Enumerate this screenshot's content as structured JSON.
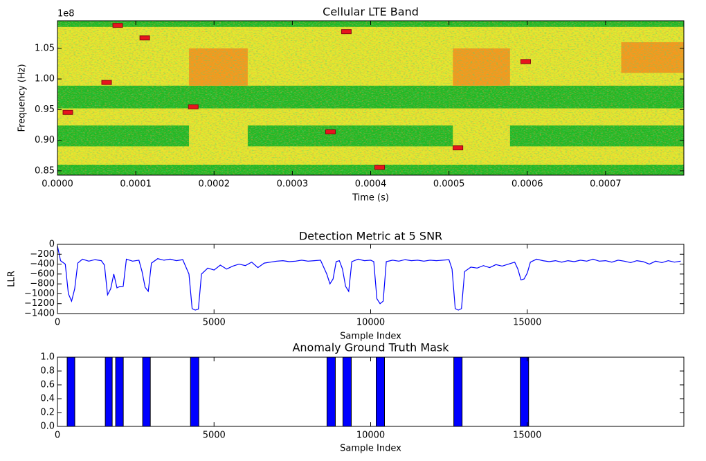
{
  "chart_data": [
    {
      "type": "spectrogram",
      "title": "Cellular LTE Band",
      "xlabel": "Time (s)",
      "ylabel": "Frequency (Hz)",
      "offset_text": "1e8",
      "xlim": [
        0,
        0.0008
      ],
      "xticks": [
        {
          "value": 0,
          "label": "0.0000"
        },
        {
          "value": 0.0001,
          "label": "0.0001"
        },
        {
          "value": 0.0002,
          "label": "0.0002"
        },
        {
          "value": 0.0003,
          "label": "0.0003"
        },
        {
          "value": 0.0004,
          "label": "0.0004"
        },
        {
          "value": 0.0005,
          "label": "0.0005"
        },
        {
          "value": 0.0006,
          "label": "0.0006"
        },
        {
          "value": 0.0007,
          "label": "0.0007"
        }
      ],
      "ylim": [
        84300000,
        109500000
      ],
      "yticks": [
        {
          "value": 85000000,
          "label": "0.85"
        },
        {
          "value": 90000000,
          "label": "0.90"
        },
        {
          "value": 95000000,
          "label": "0.95"
        },
        {
          "value": 100000000,
          "label": "1.00"
        },
        {
          "value": 105000000,
          "label": "1.05"
        }
      ],
      "level_colors": [
        "#1fb824",
        "#e6e82e",
        "#f39a1c"
      ],
      "regions": [
        {
          "x": [
            0,
            0.0008
          ],
          "y": [
            84300000,
            109500000
          ],
          "level": 1
        },
        {
          "x": [
            0,
            0.0008
          ],
          "y": [
            108500000,
            109500000
          ],
          "level": 0
        },
        {
          "x": [
            0,
            0.0008
          ],
          "y": [
            95200000,
            98900000
          ],
          "level": 0
        },
        {
          "x": [
            0,
            0.000168
          ],
          "y": [
            89000000,
            92400000
          ],
          "level": 0
        },
        {
          "x": [
            0.000243,
            0.000505
          ],
          "y": [
            89000000,
            92400000
          ],
          "level": 0
        },
        {
          "x": [
            0.000578,
            0.0008
          ],
          "y": [
            89000000,
            92400000
          ],
          "level": 0
        },
        {
          "x": [
            0,
            0.0008
          ],
          "y": [
            84300000,
            86000000
          ],
          "level": 0
        },
        {
          "x": [
            0.000168,
            0.000243
          ],
          "y": [
            98900000,
            105000000
          ],
          "level": 2
        },
        {
          "x": [
            0.000505,
            0.000578
          ],
          "y": [
            98900000,
            105000000
          ],
          "level": 2
        },
        {
          "x": [
            0.00072,
            0.0008
          ],
          "y": [
            101000000,
            106000000
          ],
          "level": 2
        }
      ],
      "marker_color": "#e8141e",
      "markers": {
        "x": [
          1.33e-05,
          6.28e-05,
          7.7e-05,
          0.0001115,
          0.0001735,
          0.0003487,
          0.000369,
          0.0004115,
          0.0005115,
          0.000598
        ],
        "y": [
          94550000,
          99430000,
          108750000,
          106700000,
          95450000,
          91360000,
          107730000,
          85570000,
          88750000,
          102840000
        ]
      }
    },
    {
      "type": "line",
      "title": "Detection Metric at 5 SNR",
      "xlabel": "Sample Index",
      "ylabel": "LLR",
      "color": "#0000ff",
      "xlim": [
        0,
        20000
      ],
      "xticks": [
        0,
        5000,
        10000,
        15000
      ],
      "ylim": [
        -1400,
        0
      ],
      "yticks": [
        0,
        {
          "value": -200,
          "label": "−200"
        },
        {
          "value": -400,
          "label": "−400"
        },
        {
          "value": -600,
          "label": "−600"
        },
        {
          "value": -800,
          "label": "−800"
        },
        {
          "value": -1000,
          "label": "−1000"
        },
        {
          "value": -1200,
          "label": "−1200"
        },
        {
          "value": -1400,
          "label": "−1400"
        }
      ],
      "x": [
        0,
        100,
        250,
        350,
        450,
        550,
        650,
        800,
        1000,
        1200,
        1400,
        1500,
        1600,
        1700,
        1800,
        1900,
        2000,
        2100,
        2200,
        2400,
        2600,
        2700,
        2800,
        2900,
        3000,
        3200,
        3400,
        3600,
        3800,
        4000,
        4200,
        4300,
        4400,
        4500,
        4600,
        4800,
        5000,
        5200,
        5400,
        5600,
        5800,
        6000,
        6200,
        6400,
        6600,
        6800,
        7000,
        7200,
        7400,
        7600,
        7800,
        8000,
        8200,
        8400,
        8600,
        8700,
        8800,
        8900,
        9000,
        9100,
        9200,
        9300,
        9400,
        9600,
        9800,
        10000,
        10100,
        10200,
        10300,
        10400,
        10500,
        10700,
        10900,
        11100,
        11300,
        11500,
        11700,
        11900,
        12100,
        12300,
        12500,
        12600,
        12700,
        12800,
        12900,
        13000,
        13200,
        13400,
        13600,
        13800,
        14000,
        14200,
        14400,
        14600,
        14700,
        14800,
        14900,
        15000,
        15100,
        15300,
        15500,
        15700,
        15900,
        16100,
        16300,
        16500,
        16700,
        16900,
        17100,
        17300,
        17500,
        17700,
        17900,
        18100,
        18300,
        18500,
        18700,
        18900,
        19100,
        19300,
        19500,
        19700,
        19900
      ],
      "values": [
        -30,
        -330,
        -400,
        -1000,
        -1150,
        -900,
        -380,
        -300,
        -340,
        -310,
        -330,
        -420,
        -1020,
        -900,
        -600,
        -880,
        -850,
        -850,
        -300,
        -340,
        -320,
        -550,
        -870,
        -950,
        -380,
        -290,
        -320,
        -300,
        -330,
        -310,
        -600,
        -1300,
        -1330,
        -1310,
        -600,
        -480,
        -520,
        -420,
        -500,
        -440,
        -400,
        -430,
        -360,
        -470,
        -380,
        -360,
        -340,
        -330,
        -350,
        -340,
        -320,
        -340,
        -330,
        -320,
        -600,
        -800,
        -700,
        -350,
        -330,
        -500,
        -850,
        -950,
        -350,
        -300,
        -330,
        -320,
        -350,
        -1100,
        -1200,
        -1150,
        -350,
        -320,
        -340,
        -310,
        -330,
        -320,
        -340,
        -320,
        -330,
        -320,
        -310,
        -500,
        -1300,
        -1330,
        -1300,
        -550,
        -460,
        -480,
        -430,
        -470,
        -410,
        -440,
        -400,
        -360,
        -500,
        -720,
        -700,
        -580,
        -360,
        -300,
        -330,
        -350,
        -330,
        -360,
        -330,
        -350,
        -320,
        -340,
        -300,
        -340,
        -330,
        -360,
        -320,
        -340,
        -370,
        -330,
        -350,
        -400,
        -340,
        -370,
        -330,
        -360,
        -340
      ]
    },
    {
      "type": "mask",
      "title": "Anomaly Ground Truth Mask",
      "xlabel": "Sample Index",
      "color": "#0000ff",
      "xlim": [
        0,
        20000
      ],
      "xticks": [
        0,
        5000,
        10000,
        15000
      ],
      "ylim": [
        0,
        1
      ],
      "yticks": [
        {
          "value": 0,
          "label": "0.0"
        },
        {
          "value": 0.2,
          "label": "0.2"
        },
        {
          "value": 0.4,
          "label": "0.4"
        },
        {
          "value": 0.6,
          "label": "0.6"
        },
        {
          "value": 0.8,
          "label": "0.8"
        },
        {
          "value": 1,
          "label": "1.0"
        }
      ],
      "starts": [
        310,
        1527,
        1858,
        2721,
        4248,
        8606,
        9115,
        10177,
        12655,
        14779
      ],
      "ends": [
        553,
        1748,
        2102,
        2965,
        4513,
        8872,
        9381,
        10442,
        12920,
        15044
      ],
      "values": [
        1,
        1,
        1,
        1,
        1,
        1,
        1,
        1,
        1,
        1
      ]
    }
  ]
}
